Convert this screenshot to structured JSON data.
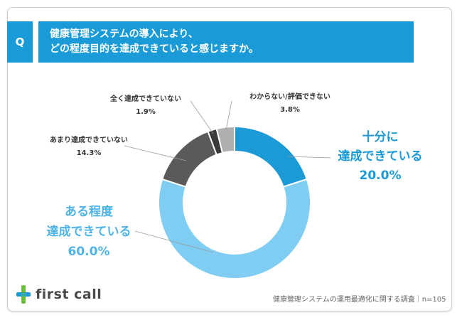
{
  "header": {
    "q_label": "Q",
    "title_line1": "健康管理システムの導入により、",
    "title_line2": "どの程度目的を達成できていると感じますか。"
  },
  "colors": {
    "header_bg": "#1a9ad6",
    "accent_text": "#1a9ad6",
    "light_accent_text": "#4fb3e6",
    "logo_green": "#6bbf3a",
    "logo_blue": "#1a9ad6"
  },
  "chart_data": {
    "type": "pie",
    "donut": true,
    "categories": [
      "十分に達成できている",
      "ある程度達成できている",
      "あまり達成できていない",
      "全く達成できていない",
      "わからない/評価できない"
    ],
    "values": [
      20.0,
      60.0,
      14.3,
      1.9,
      3.8
    ],
    "value_labels": [
      "20.0%",
      "60.0%",
      "14.3%",
      "1.9%",
      "3.8%"
    ],
    "colors": [
      "#1b9ad6",
      "#7fcdf2",
      "#5a5a5a",
      "#3a3a3a",
      "#b0b0b0"
    ],
    "labels": {
      "full_line1": "十分に",
      "full_line2": "達成できている",
      "full_pct": "20.0%",
      "some_line1": "ある程度",
      "some_line2": "達成できている",
      "some_pct": "60.0%",
      "notmuch_line1": "あまり達成できていない",
      "notmuch_pct": "14.3%",
      "notatall_line1": "全く達成できていない",
      "notatall_pct": "1.9%",
      "unknown_line1": "わからない/評価できない",
      "unknown_pct": "3.8%"
    }
  },
  "footer": {
    "note": "健康管理システムの運用最適化に関する調査｜n=105",
    "logo_text": "first call"
  }
}
